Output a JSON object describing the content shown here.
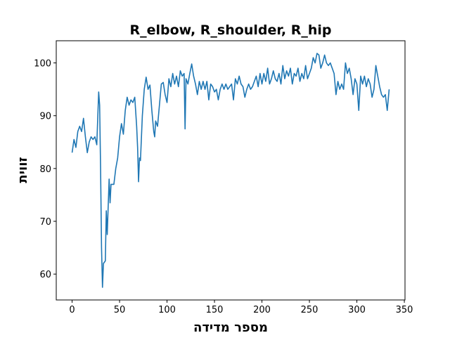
{
  "chart_data": {
    "type": "line",
    "title": "R_elbow, R_shoulder, R_hip",
    "x_label": "מספר מדידה",
    "y_label": "זווית",
    "x": [
      0,
      2,
      4,
      6,
      8,
      10,
      12,
      14,
      16,
      18,
      20,
      22,
      24,
      26,
      28,
      29,
      30,
      31,
      32,
      33,
      35,
      36,
      37,
      39,
      40,
      41,
      44,
      46,
      48,
      50,
      52,
      54,
      56,
      58,
      60,
      62,
      64,
      66,
      68,
      69,
      70,
      71,
      72,
      74,
      76,
      78,
      80,
      82,
      84,
      86,
      87,
      88,
      90,
      92,
      94,
      96,
      98,
      100,
      102,
      104,
      106,
      108,
      110,
      112,
      114,
      116,
      118,
      119,
      120,
      122,
      124,
      126,
      128,
      130,
      132,
      134,
      136,
      138,
      140,
      142,
      144,
      146,
      148,
      150,
      152,
      154,
      156,
      158,
      160,
      162,
      164,
      166,
      168,
      170,
      172,
      174,
      176,
      178,
      180,
      182,
      184,
      186,
      188,
      190,
      192,
      194,
      196,
      198,
      200,
      202,
      204,
      206,
      208,
      210,
      212,
      214,
      216,
      218,
      220,
      222,
      224,
      226,
      228,
      230,
      232,
      234,
      236,
      238,
      240,
      242,
      244,
      246,
      248,
      250,
      252,
      254,
      256,
      258,
      260,
      262,
      264,
      266,
      268,
      270,
      272,
      274,
      276,
      278,
      280,
      282,
      284,
      286,
      288,
      290,
      292,
      294,
      296,
      298,
      300,
      302,
      304,
      306,
      308,
      310,
      312,
      314,
      316,
      318,
      320,
      322,
      324,
      326,
      328,
      330,
      332,
      334
    ],
    "series": [
      {
        "color": "#1f77b4",
        "values": [
          83,
          85.5,
          84,
          87,
          88,
          87,
          89.5,
          86,
          83,
          85,
          86,
          85.5,
          86,
          84.5,
          94.5,
          92,
          80,
          65,
          57.5,
          62,
          62.5,
          72,
          67.5,
          78,
          73.5,
          77,
          77,
          80,
          82,
          86,
          88.5,
          86.5,
          91,
          93.5,
          92,
          93,
          92.5,
          93.5,
          88,
          84,
          77.5,
          82,
          81.5,
          90,
          95,
          97.3,
          95,
          95.8,
          91,
          87,
          86,
          89,
          88,
          92,
          96,
          96.3,
          94,
          92.5,
          97,
          95.5,
          98,
          96,
          97.5,
          95.5,
          98.5,
          97.5,
          98,
          87.5,
          97,
          96,
          98,
          99.8,
          97.5,
          96,
          94,
          96.5,
          95,
          96.5,
          95,
          96.5,
          93,
          96,
          95.5,
          94.5,
          95,
          93,
          95,
          96,
          95,
          96,
          95,
          95.5,
          96,
          93,
          97,
          96,
          97.5,
          96,
          95.5,
          93.5,
          95,
          96,
          95,
          95.5,
          96.5,
          97.5,
          95.5,
          98,
          96,
          98,
          96.5,
          99,
          96,
          97,
          98.5,
          97,
          96.5,
          98,
          96,
          99.5,
          97,
          98.5,
          97.5,
          99,
          96,
          98,
          97.5,
          99,
          96.5,
          98,
          97,
          99.5,
          97,
          98,
          99,
          101,
          100,
          101.8,
          101.5,
          99,
          100,
          101.5,
          100,
          99.5,
          100,
          99,
          98,
          94,
          96.5,
          95,
          96,
          95,
          100,
          98,
          99,
          97,
          94,
          97,
          96,
          91,
          97.5,
          96,
          97.5,
          95.5,
          97,
          96,
          93.5,
          95,
          99.5,
          97.5,
          95.5,
          94,
          93.5,
          94,
          91,
          95
        ]
      }
    ],
    "xlim": [
      -16.7,
      350.7
    ],
    "ylim": [
      55.1,
      104.2
    ],
    "xticks": [
      0,
      50,
      100,
      150,
      200,
      250,
      300,
      350
    ],
    "yticks": [
      60,
      70,
      80,
      90,
      100
    ]
  }
}
